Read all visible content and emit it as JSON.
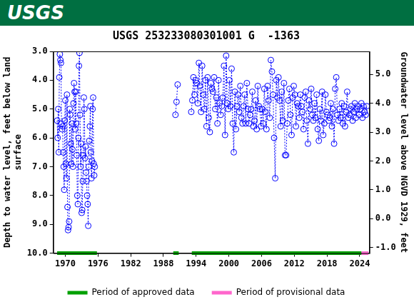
{
  "banner": {
    "text": "USGS",
    "color": "#006f41"
  },
  "chart_data": {
    "type": "scatter",
    "title": "USGS 253233080301001 G  -1363",
    "y_label": [
      "Depth to water level, feet below land",
      "surface"
    ],
    "y2_label": "Groundwater level above NGVD 1929, feet",
    "xlim": [
      1967.8,
      2025.8
    ],
    "xticks": [
      1970,
      1976,
      1982,
      1988,
      1994,
      2000,
      2006,
      2012,
      2018,
      2024
    ],
    "ylim": [
      10,
      3
    ],
    "yticks": [
      {
        "value": 3,
        "label": "3.0"
      },
      {
        "value": 4,
        "label": "4.0"
      },
      {
        "value": 5,
        "label": "5.0"
      },
      {
        "value": 6,
        "label": "6.0"
      },
      {
        "value": 7,
        "label": "7.0"
      },
      {
        "value": 8,
        "label": "8.0"
      },
      {
        "value": 9,
        "label": "9.0"
      },
      {
        "value": 10,
        "label": "10.0"
      }
    ],
    "y2lim": [
      -1.2,
      5.8
    ],
    "y2ticks": [
      {
        "value": -1,
        "label": "-1.0"
      },
      {
        "value": 0,
        "label": "0.0"
      },
      {
        "value": 1,
        "label": "1.0"
      },
      {
        "value": 2,
        "label": "2.0"
      },
      {
        "value": 3,
        "label": "3.0"
      },
      {
        "value": 4,
        "label": "4.0"
      },
      {
        "value": 5,
        "label": "5.0"
      }
    ],
    "grid": false,
    "legend": "bottom",
    "x": [
      1968.5,
      1968.6,
      1968.7,
      1968.8,
      1968.9,
      1969.0,
      1969.1,
      1969.2,
      1969.3,
      1969.4,
      1969.5,
      1969.6,
      1969.7,
      1969.8,
      1969.9,
      1970.0,
      1970.1,
      1970.2,
      1970.3,
      1970.4,
      1970.5,
      1970.6,
      1970.7,
      1970.8,
      1970.9,
      1971.0,
      1971.1,
      1971.2,
      1971.3,
      1971.4,
      1971.5,
      1971.6,
      1971.7,
      1971.8,
      1971.9,
      1972.0,
      1972.1,
      1972.2,
      1972.3,
      1972.4,
      1972.5,
      1972.6,
      1972.7,
      1972.8,
      1972.9,
      1973.0,
      1973.1,
      1973.2,
      1973.3,
      1973.4,
      1973.5,
      1973.6,
      1973.7,
      1973.8,
      1973.9,
      1974.0,
      1974.1,
      1974.2,
      1974.3,
      1974.4,
      1974.5,
      1974.6,
      1974.7,
      1974.8,
      1974.9,
      1975.0,
      1975.1,
      1975.2,
      1975.3,
      1975.4,
      1982,
      1990.2,
      1990.4,
      1990.6,
      1992,
      1993.1,
      1993.3,
      1993.5,
      1993.7,
      1993.9,
      1994.1,
      1994.3,
      1994.5,
      1994.7,
      1994.9,
      1995.1,
      1995.3,
      1995.5,
      1995.7,
      1995.9,
      1996.1,
      1996.3,
      1996.5,
      1996.7,
      1996.9,
      1997.1,
      1997.3,
      1997.5,
      1997.7,
      1997.9,
      1998.1,
      1998.3,
      1998.5,
      1998.7,
      1998.9,
      1999.1,
      1999.3,
      1999.5,
      1999.7,
      1999.9,
      2000.1,
      2000.3,
      2000.5,
      2000.7,
      2000.9,
      2001.1,
      2001.3,
      2001.5,
      2001.7,
      2001.9,
      2002.1,
      2002.3,
      2002.5,
      2002.7,
      2002.9,
      2003.1,
      2003.3,
      2003.5,
      2003.7,
      2003.9,
      2004.1,
      2004.3,
      2004.5,
      2004.7,
      2004.9,
      2005.1,
      2005.3,
      2005.5,
      2005.7,
      2005.9,
      2006.1,
      2006.3,
      2006.5,
      2006.7,
      2006.9,
      2007.1,
      2007.3,
      2007.5,
      2007.7,
      2007.9,
      2008.1,
      2008.3,
      2008.5,
      2008.7,
      2008.9,
      2009.1,
      2009.3,
      2009.5,
      2009.7,
      2009.9,
      2010.1,
      2010.3,
      2010.5,
      2010.7,
      2010.9,
      2011.1,
      2011.3,
      2011.5,
      2011.7,
      2011.9,
      2012.1,
      2012.3,
      2012.5,
      2012.7,
      2012.9,
      2013.1,
      2013.3,
      2013.5,
      2013.7,
      2013.9,
      2014.1,
      2014.3,
      2014.5,
      2014.7,
      2014.9,
      2015.1,
      2015.3,
      2015.5,
      2015.7,
      2015.9,
      2016.1,
      2016.3,
      2016.5,
      2016.7,
      2016.9,
      2017.1,
      2017.3,
      2017.5,
      2017.7,
      2017.9,
      2018.1,
      2018.3,
      2018.5,
      2018.7,
      2018.9,
      2019.1,
      2019.3,
      2019.5,
      2019.7,
      2019.9,
      2020.1,
      2020.3,
      2020.5,
      2020.7,
      2020.9,
      2021.1,
      2021.3,
      2021.5,
      2021.7,
      2021.9,
      2022.1,
      2022.3,
      2022.5,
      2022.7,
      2022.9,
      2023.1,
      2023.3,
      2023.5,
      2023.7,
      2023.9,
      2024.1,
      2024.3,
      2024.5,
      2024.7,
      2024.9,
      2025.1,
      2025.3
    ],
    "series": [
      {
        "color": "#0000ff",
        "marker": "circle",
        "line_style": "dotted",
        "values": [
          5.4,
          6.0,
          5.0,
          6.5,
          3.9,
          3.1,
          3.3,
          3.4,
          5.5,
          5.7,
          5.6,
          6.5,
          7.0,
          7.8,
          5.4,
          4.7,
          6.9,
          7.4,
          4.5,
          8.4,
          9.2,
          9.1,
          8.9,
          5.0,
          5.2,
          6.2,
          6.9,
          5.5,
          6.4,
          7.0,
          4.8,
          4.1,
          4.4,
          5.7,
          4.4,
          5.5,
          6.6,
          8.0,
          8.3,
          6.0,
          3.5,
          3.05,
          5.2,
          7.0,
          6.2,
          8.6,
          8.5,
          7.5,
          6.6,
          4.6,
          5.0,
          6.7,
          6.3,
          7.2,
          7.5,
          8.0,
          8.3,
          9.05,
          7.0,
          6.1,
          5.6,
          4.9,
          6.5,
          7.4,
          6.8,
          5.0,
          4.6,
          6.9,
          7.3,
          7.0,
          null,
          5.2,
          4.75,
          4.15,
          null,
          5.1,
          4.7,
          3.9,
          4.5,
          4.0,
          4.1,
          4.8,
          3.4,
          4.2,
          5.1,
          3.5,
          4.5,
          5.0,
          4.0,
          5.6,
          3.9,
          5.3,
          5.8,
          4.1,
          4.3,
          4.4,
          3.9,
          5.0,
          4.6,
          5.5,
          4.0,
          4.8,
          5.2,
          4.9,
          4.6,
          3.5,
          5.9,
          3.15,
          4.8,
          5.0,
          4.0,
          4.9,
          3.6,
          5.5,
          6.5,
          4.4,
          5.7,
          4.9,
          4.5,
          5.1,
          4.2,
          5.3,
          5.5,
          4.9,
          4.5,
          5.5,
          4.1,
          5.0,
          5.5,
          5.2,
          5.0,
          4.4,
          5.6,
          5.4,
          4.7,
          5.7,
          4.2,
          4.9,
          5.0,
          5.6,
          5.0,
          5.5,
          4.3,
          5.1,
          5.7,
          4.2,
          4.7,
          5.3,
          3.3,
          3.7,
          4.5,
          6.0,
          7.4,
          4.0,
          4.6,
          3.9,
          4.7,
          5.6,
          4.4,
          5.4,
          4.1,
          6.6,
          6.6,
          5.5,
          4.7,
          4.3,
          5.2,
          5.9,
          4.6,
          4.2,
          4.5,
          5.6,
          4.8,
          4.9,
          5.3,
          4.5,
          4.9,
          5.1,
          5.7,
          4.6,
          4.4,
          5.4,
          6.2,
          4.7,
          5.0,
          4.3,
          5.2,
          5.4,
          4.8,
          5.3,
          4.5,
          5.7,
          6.1,
          5.0,
          5.4,
          4.4,
          5.9,
          5.5,
          4.5,
          5.1,
          5.2,
          5.4,
          5.3,
          4.8,
          5.6,
          5.0,
          6.2,
          4.3,
          3.9,
          5.2,
          5.4,
          5.0,
          5.3,
          4.8,
          5.5,
          4.9,
          5.6,
          5.1,
          4.4,
          5.3,
          5.2,
          5.0,
          4.9,
          5.4,
          5.1,
          4.8,
          5.3,
          5.0,
          4.9,
          5.2,
          5.0,
          4.8,
          5.3,
          4.9,
          5.1,
          5.2,
          4.9
        ]
      }
    ],
    "periods": [
      {
        "name": "Period of approved data",
        "color": "#00a000",
        "ranges": [
          [
            1968.5,
            1975.8
          ],
          [
            1989.8,
            1990.8
          ],
          [
            1993.2,
            2024.3
          ]
        ]
      },
      {
        "name": "Period of provisional data",
        "color": "#ff66cc",
        "ranges": [
          [
            2024.3,
            2025.6
          ]
        ]
      }
    ]
  }
}
